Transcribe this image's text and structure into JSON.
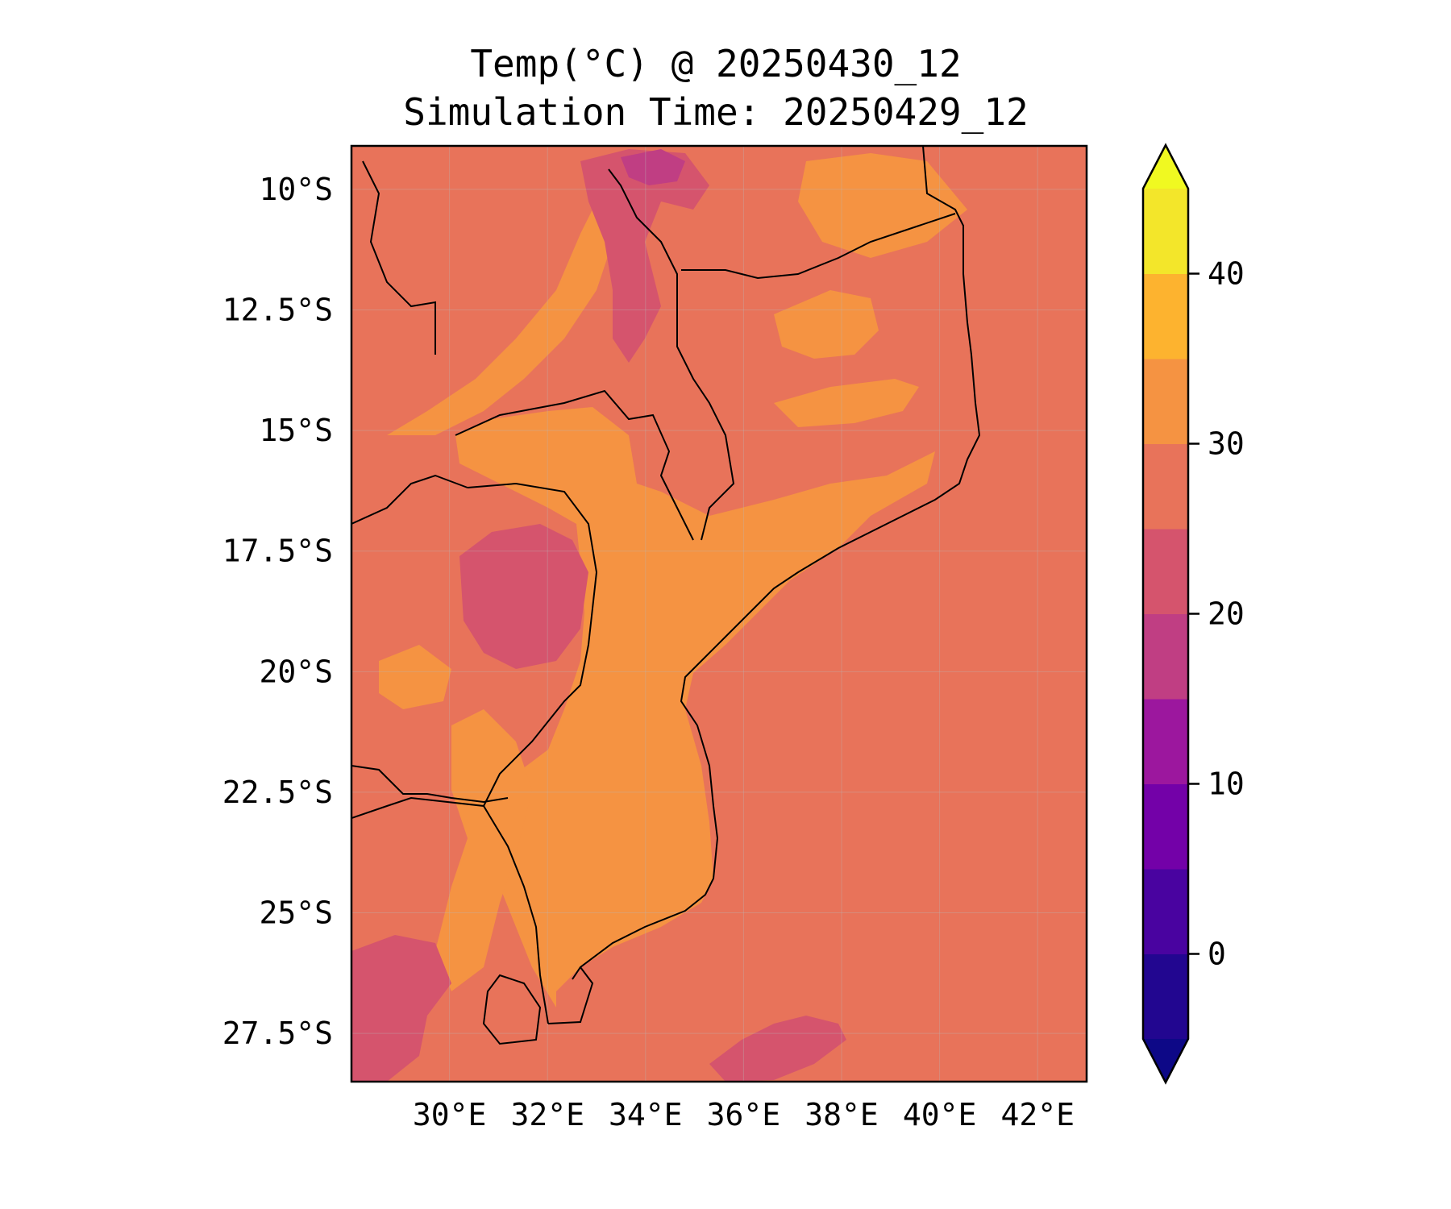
{
  "title": {
    "line1": "Temp(°C) @ 20250430_12",
    "line2": "Simulation Time: 20250429_12"
  },
  "map": {
    "lon_range": [
      28,
      43
    ],
    "lat_range": [
      -28.5,
      -9.1
    ],
    "lat_ticks": [
      {
        "value": -10,
        "label": "10°S"
      },
      {
        "value": -12.5,
        "label": "12.5°S"
      },
      {
        "value": -15,
        "label": "15°S"
      },
      {
        "value": -17.5,
        "label": "17.5°S"
      },
      {
        "value": -20,
        "label": "20°S"
      },
      {
        "value": -22.5,
        "label": "22.5°S"
      },
      {
        "value": -25,
        "label": "25°S"
      },
      {
        "value": -27.5,
        "label": "27.5°S"
      }
    ],
    "lon_ticks": [
      {
        "value": 30,
        "label": "30°E"
      },
      {
        "value": 32,
        "label": "32°E"
      },
      {
        "value": 34,
        "label": "34°E"
      },
      {
        "value": 36,
        "label": "36°E"
      },
      {
        "value": 38,
        "label": "38°E"
      },
      {
        "value": 40,
        "label": "40°E"
      },
      {
        "value": 42,
        "label": "42°E"
      }
    ],
    "colors": {
      "ocean": "#e8735a",
      "warm": "#f59342",
      "cool": "#d5546d",
      "cooler": "#c03e83",
      "coolest": "#9c179e",
      "border": "#000000"
    },
    "field": {
      "background_temp_c": "27.5-30",
      "lowland_temp_c": "30-35",
      "highland_temp_c": "20-25"
    }
  },
  "colorbar": {
    "cmap": "plasma",
    "range": [
      -5,
      45
    ],
    "extend": "both",
    "levels": [
      -5,
      0,
      5,
      10,
      15,
      20,
      25,
      30,
      35,
      40,
      45
    ],
    "colors": [
      "#220690",
      "#4903a0",
      "#7301a8",
      "#9c179e",
      "#c03e83",
      "#d5546d",
      "#e8735a",
      "#f59342",
      "#fdb32f",
      "#f3e62a"
    ],
    "under_color": "#0d0887",
    "over_color": "#f0f921",
    "ticks": [
      {
        "value": 0,
        "label": "0"
      },
      {
        "value": 10,
        "label": "10"
      },
      {
        "value": 20,
        "label": "20"
      },
      {
        "value": 30,
        "label": "30"
      },
      {
        "value": 40,
        "label": "40"
      }
    ]
  }
}
